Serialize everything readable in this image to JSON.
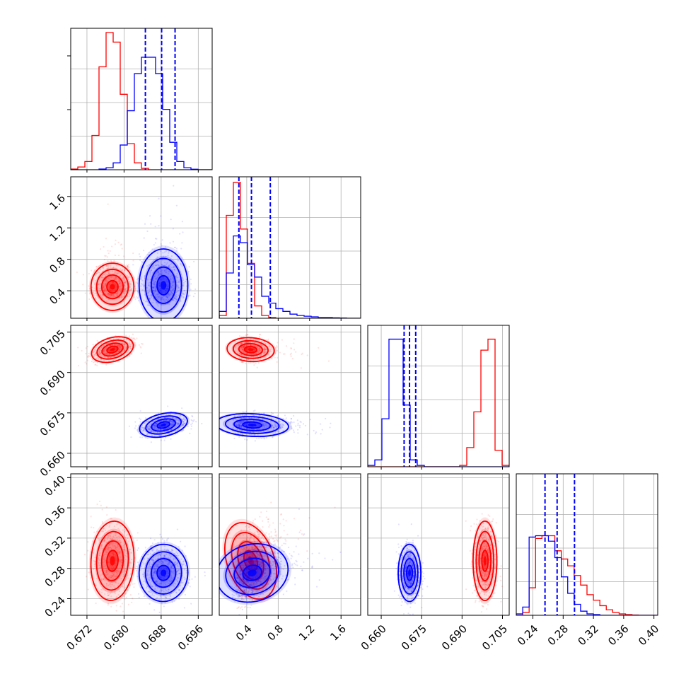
{
  "chart_data": {
    "type": "corner",
    "grid": true,
    "colors": {
      "series_a": "#ff0000",
      "series_b": "#0000ff",
      "quantile_lines": "#0000ff"
    },
    "series": [
      {
        "color": "#ff0000",
        "mean": [
          0.6775,
          0.45,
          0.6985,
          0.29
        ],
        "std": [
          0.0022,
          0.13,
          0.0021,
          0.025
        ]
      },
      {
        "color": "#0000ff",
        "mean": [
          0.6885,
          0.47,
          0.6705,
          0.274
        ],
        "std": [
          0.0025,
          0.2,
          0.002,
          0.018
        ]
      }
    ],
    "parameters": [
      {
        "range": [
          0.6685,
          0.699
        ],
        "ticks": [
          0.672,
          0.68,
          0.688,
          0.696
        ],
        "tick_labels": [
          "0.672",
          "0.680",
          "0.688",
          "0.696"
        ]
      },
      {
        "range": [
          0.05,
          1.85
        ],
        "ticks": [
          0.4,
          0.8,
          1.2,
          1.6
        ],
        "tick_labels": [
          "0.4",
          "0.8",
          "1.2",
          "1.6"
        ]
      },
      {
        "range": [
          0.655,
          0.7075
        ],
        "ticks": [
          0.66,
          0.675,
          0.69,
          0.705
        ],
        "tick_labels": [
          "0.660",
          "0.675",
          "0.690",
          "0.705"
        ]
      },
      {
        "range": [
          0.218,
          0.405
        ],
        "ticks": [
          0.24,
          0.28,
          0.32,
          0.36,
          0.4
        ],
        "tick_labels": [
          "0.24",
          "0.28",
          "0.32",
          "0.36",
          "0.40"
        ]
      }
    ],
    "quantile_lines": [
      [
        0.6846,
        0.6881,
        0.691
      ],
      [
        0.3,
        0.46,
        0.7
      ],
      [
        0.6685,
        0.6705,
        0.6728
      ],
      [
        0.256,
        0.272,
        0.295
      ]
    ],
    "histograms": [
      {
        "bins": [
          0.6685,
          0.699,
          20
        ],
        "red": [
          0.005,
          0.02,
          0.06,
          0.25,
          0.75,
          1.0,
          0.93,
          0.55,
          0.19,
          0.05,
          0.01,
          0.0,
          0,
          0,
          0,
          0,
          0,
          0,
          0,
          0
        ],
        "blue": [
          0,
          0,
          0,
          0,
          0.005,
          0.015,
          0.05,
          0.18,
          0.43,
          0.7,
          0.82,
          0.82,
          0.7,
          0.44,
          0.2,
          0.06,
          0.015,
          0.004,
          0,
          0
        ]
      },
      {
        "bins": [
          0.05,
          1.85,
          20
        ],
        "red": [
          0.02,
          0.75,
          0.99,
          0.65,
          0.4,
          0.09,
          0.02,
          0.005,
          0,
          0,
          0,
          0,
          0,
          0,
          0,
          0,
          0,
          0,
          0,
          0
        ],
        "blue": [
          0.05,
          0.33,
          0.6,
          0.55,
          0.39,
          0.3,
          0.16,
          0.11,
          0.07,
          0.05,
          0.03,
          0.02,
          0.015,
          0.01,
          0.005,
          0.005,
          0.003,
          0.002,
          0,
          0
        ]
      },
      {
        "bins": [
          0.655,
          0.7075,
          20
        ],
        "red": [
          0,
          0,
          0,
          0,
          0,
          0,
          0,
          0,
          0,
          0,
          0,
          0,
          0,
          0.01,
          0.14,
          0.4,
          0.85,
          0.93,
          0.12,
          0.01
        ],
        "blue": [
          0.01,
          0.05,
          0.35,
          0.93,
          0.93,
          0.45,
          0.05,
          0.01,
          0,
          0,
          0,
          0,
          0,
          0,
          0,
          0,
          0,
          0,
          0,
          0
        ]
      },
      {
        "bins": [
          0.218,
          0.405,
          22
        ],
        "red": [
          0,
          0.02,
          0.2,
          0.56,
          0.58,
          0.58,
          0.47,
          0.41,
          0.36,
          0.29,
          0.22,
          0.15,
          0.11,
          0.07,
          0.04,
          0.02,
          0.01,
          0.005,
          0.002,
          0,
          0,
          0
        ],
        "blue": [
          0.01,
          0.06,
          0.57,
          0.58,
          0.58,
          0.54,
          0.42,
          0.28,
          0.16,
          0.08,
          0.03,
          0.01,
          0.005,
          0,
          0,
          0,
          0,
          0,
          0,
          0,
          0,
          0
        ]
      }
    ]
  }
}
